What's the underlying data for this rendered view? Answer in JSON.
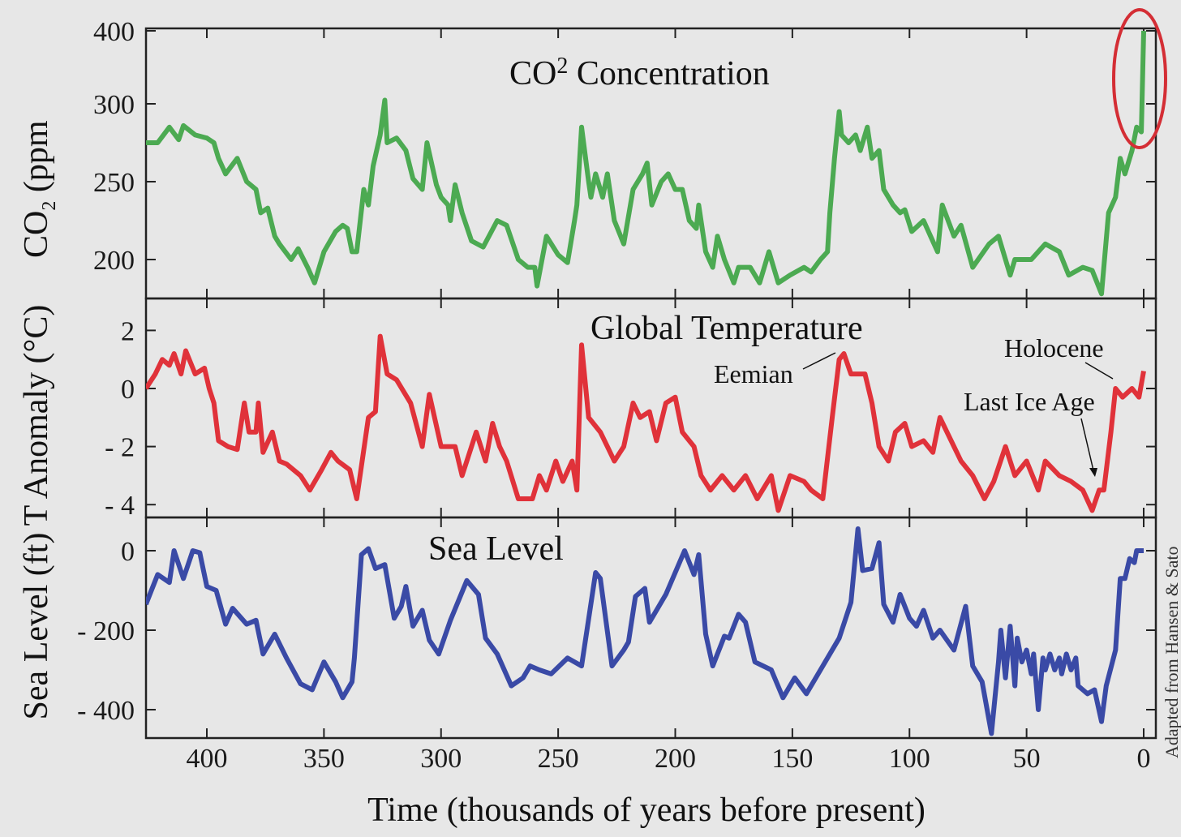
{
  "chart_data": [
    {
      "type": "line",
      "panel": "co2",
      "title": {
        "main": "CO",
        "sup": "2",
        "rest": " Concentration"
      },
      "ylabel": {
        "main": "CO",
        "sub": "2",
        "rest": " (ppm"
      },
      "yticks": [
        200,
        250,
        300,
        400
      ],
      "ytick_labels": [
        "200",
        "250",
        "300",
        "400"
      ],
      "ylim": [
        178,
        400
      ],
      "color": "#4caa52",
      "highlight_color": "#d42e35",
      "highlight_note": "recent CO2 spike circled",
      "x": [
        426,
        421,
        416,
        412,
        410,
        405,
        400,
        397,
        395,
        392,
        387,
        383,
        379,
        377,
        374,
        371,
        369,
        364,
        361,
        357,
        354,
        350,
        345,
        342,
        340,
        338,
        336,
        333,
        331,
        329,
        326,
        324,
        323,
        319,
        315,
        312,
        308,
        306,
        302,
        300,
        297,
        296,
        294,
        291,
        287,
        282,
        276,
        272,
        267,
        263,
        260,
        259,
        255,
        250,
        246,
        243,
        242,
        240,
        237,
        236,
        234,
        231,
        229,
        226,
        222,
        218,
        214,
        212,
        210,
        206,
        203,
        200,
        197,
        194,
        191,
        190,
        187,
        184,
        182,
        179,
        175,
        173,
        168,
        164,
        160,
        156,
        151,
        145,
        142,
        138,
        135,
        134,
        132,
        130,
        129,
        126,
        123,
        121,
        118,
        116,
        113,
        111,
        107,
        104,
        102,
        99,
        94,
        88,
        86,
        81,
        78,
        73,
        66,
        62,
        57,
        55,
        48,
        42,
        36,
        32,
        26,
        22,
        18,
        15,
        12,
        10,
        8,
        5,
        3,
        1,
        0
      ],
      "values": [
        275,
        275,
        285,
        277,
        286,
        280,
        278,
        275,
        265,
        255,
        265,
        250,
        245,
        230,
        233,
        215,
        210,
        200,
        207,
        195,
        185,
        205,
        218,
        222,
        220,
        205,
        205,
        245,
        235,
        260,
        280,
        305,
        275,
        278,
        270,
        252,
        245,
        275,
        248,
        240,
        235,
        225,
        248,
        230,
        212,
        208,
        225,
        222,
        200,
        195,
        195,
        183,
        215,
        203,
        198,
        225,
        235,
        285,
        250,
        240,
        255,
        240,
        255,
        225,
        210,
        245,
        255,
        262,
        235,
        250,
        255,
        245,
        245,
        225,
        220,
        235,
        205,
        195,
        215,
        200,
        185,
        195,
        195,
        185,
        205,
        185,
        190,
        195,
        192,
        200,
        205,
        230,
        265,
        295,
        280,
        275,
        280,
        270,
        285,
        265,
        270,
        245,
        235,
        230,
        232,
        218,
        225,
        205,
        235,
        215,
        222,
        195,
        210,
        215,
        190,
        200,
        200,
        210,
        205,
        190,
        195,
        193,
        178,
        230,
        240,
        265,
        255,
        270,
        285,
        282,
        400
      ]
    },
    {
      "type": "line",
      "panel": "temperature",
      "title": "Global Temperature",
      "ylabel": "T Anomaly (°C)",
      "yticks": [
        2,
        0,
        -2,
        -4
      ],
      "ytick_labels": [
        "2",
        "0",
        "- 2",
        "- 4"
      ],
      "ylim": [
        -4.4,
        2.9
      ],
      "color": "#e0323a",
      "annotations": [
        {
          "text": "Eemian",
          "x": 128,
          "y": 1.2
        },
        {
          "text": "Holocene",
          "x": 12,
          "y": 0.3
        },
        {
          "text": "Last Ice Age",
          "x": 20,
          "y": -3.0
        }
      ],
      "x": [
        426,
        422,
        419,
        416,
        414,
        411,
        409,
        405,
        401,
        399,
        397,
        395,
        391,
        387,
        384,
        382,
        379,
        378,
        376,
        372,
        369,
        366,
        360,
        356,
        351,
        347,
        344,
        339,
        336,
        331,
        328,
        326,
        323,
        319,
        313,
        308,
        305,
        300,
        294,
        291,
        285,
        281,
        278,
        275,
        272,
        267,
        261,
        258,
        255,
        251,
        248,
        244,
        242,
        240,
        237,
        232,
        229,
        226,
        222,
        218,
        215,
        211,
        208,
        204,
        200,
        197,
        192,
        189,
        185,
        180,
        175,
        170,
        165,
        159,
        156,
        151,
        145,
        142,
        137,
        133,
        130,
        128,
        125,
        119,
        116,
        113,
        109,
        106,
        102,
        99,
        94,
        90,
        87,
        81,
        78,
        73,
        68,
        64,
        59,
        55,
        50,
        45,
        42,
        36,
        31,
        26,
        22,
        19,
        17,
        14,
        12,
        9,
        5,
        2,
        0
      ],
      "values": [
        0,
        0.5,
        1,
        0.8,
        1.2,
        0.5,
        1.3,
        0.5,
        0.7,
        0,
        -0.5,
        -1.8,
        -2,
        -2.1,
        -0.5,
        -1.5,
        -1.5,
        -0.5,
        -2.2,
        -1.5,
        -2.5,
        -2.6,
        -3,
        -3.5,
        -2.8,
        -2.2,
        -2.5,
        -2.8,
        -3.8,
        -1,
        -0.8,
        1.8,
        0.5,
        0.3,
        -0.5,
        -2,
        -0.2,
        -2,
        -2,
        -3,
        -1.5,
        -2.5,
        -1.2,
        -2,
        -2.5,
        -3.8,
        -3.8,
        -3,
        -3.5,
        -2.5,
        -3.2,
        -2.5,
        -3.5,
        1.5,
        -1,
        -1.5,
        -2,
        -2.5,
        -2,
        -0.5,
        -1,
        -0.8,
        -1.8,
        -0.5,
        -0.3,
        -1.5,
        -2,
        -3,
        -3.5,
        -3,
        -3.5,
        -3,
        -3.8,
        -3,
        -4.2,
        -3,
        -3.2,
        -3.5,
        -3.8,
        -1,
        1,
        1.2,
        0.5,
        0.5,
        -0.5,
        -2,
        -2.5,
        -1.5,
        -1.2,
        -2,
        -1.8,
        -2.2,
        -1,
        -2,
        -2.5,
        -3,
        -3.8,
        -3.2,
        -2,
        -3,
        -2.5,
        -3.5,
        -2.5,
        -3,
        -3.2,
        -3.5,
        -4.2,
        -3.5,
        -3.5,
        -1.5,
        0,
        -0.3,
        0,
        -0.3,
        0.6
      ]
    },
    {
      "type": "line",
      "panel": "sea-level",
      "title": "Sea Level",
      "ylabel": "Sea Level (ft)",
      "yticks": [
        0,
        -200,
        -400
      ],
      "ytick_labels": [
        "0",
        "- 200",
        "- 400"
      ],
      "ylim": [
        -470,
        60
      ],
      "color": "#3a4aa6",
      "x": [
        426,
        421,
        416,
        414,
        410,
        406,
        403,
        400,
        396,
        392,
        389,
        383,
        379,
        376,
        371,
        366,
        360,
        355,
        350,
        345,
        342,
        338,
        337,
        334,
        331,
        328,
        324,
        320,
        317,
        315,
        312,
        308,
        305,
        301,
        296,
        289,
        284,
        281,
        276,
        270,
        265,
        262,
        258,
        253,
        246,
        240,
        234,
        232,
        227,
        222,
        220,
        217,
        213,
        211,
        204,
        196,
        192,
        190,
        187,
        184,
        179,
        177,
        173,
        170,
        166,
        159,
        154,
        149,
        144,
        137,
        130,
        125,
        122,
        120,
        116,
        113,
        111,
        107,
        104,
        100,
        97,
        94,
        90,
        87,
        81,
        76,
        73,
        69,
        65,
        62,
        61,
        59,
        57,
        55,
        54,
        52,
        50,
        48,
        47,
        45,
        43,
        42,
        40,
        38,
        36,
        35,
        33,
        31,
        29,
        28,
        24,
        21,
        18,
        16,
        12,
        10,
        8,
        6,
        4,
        3,
        0
      ],
      "values": [
        -135,
        -60,
        -80,
        0,
        -70,
        0,
        -5,
        -90,
        -100,
        -185,
        -145,
        -185,
        -175,
        -260,
        -210,
        -270,
        -335,
        -350,
        -280,
        -330,
        -370,
        -330,
        -270,
        -10,
        5,
        -45,
        -35,
        -170,
        -140,
        -90,
        -190,
        -150,
        -225,
        -260,
        -175,
        -75,
        -110,
        -220,
        -260,
        -340,
        -320,
        -290,
        -300,
        -310,
        -270,
        -290,
        -55,
        -70,
        -290,
        -250,
        -230,
        -115,
        -95,
        -180,
        -110,
        0,
        -60,
        -10,
        -210,
        -290,
        -215,
        -220,
        -160,
        -180,
        -280,
        -300,
        -370,
        -320,
        -360,
        -290,
        -220,
        -130,
        55,
        -50,
        -45,
        20,
        -135,
        -180,
        -110,
        -170,
        -190,
        -150,
        -220,
        -200,
        -250,
        -140,
        -290,
        -330,
        -460,
        -280,
        -200,
        -320,
        -190,
        -340,
        -220,
        -280,
        -250,
        -310,
        -260,
        -400,
        -270,
        -300,
        -260,
        -300,
        -270,
        -310,
        -260,
        -300,
        -270,
        -340,
        -360,
        -350,
        -430,
        -340,
        -250,
        -70,
        -70,
        -20,
        -30,
        0,
        0
      ]
    }
  ],
  "xaxis": {
    "label": "Time (thousands of years before present)",
    "ticks": [
      400,
      350,
      300,
      250,
      200,
      150,
      100,
      50,
      0
    ],
    "tick_labels": [
      "400",
      "350",
      "300",
      "250",
      "200",
      "150",
      "100",
      "50",
      "0"
    ],
    "xlim": [
      426,
      -5
    ]
  },
  "credit": "Adapted from Hansen & Sato"
}
